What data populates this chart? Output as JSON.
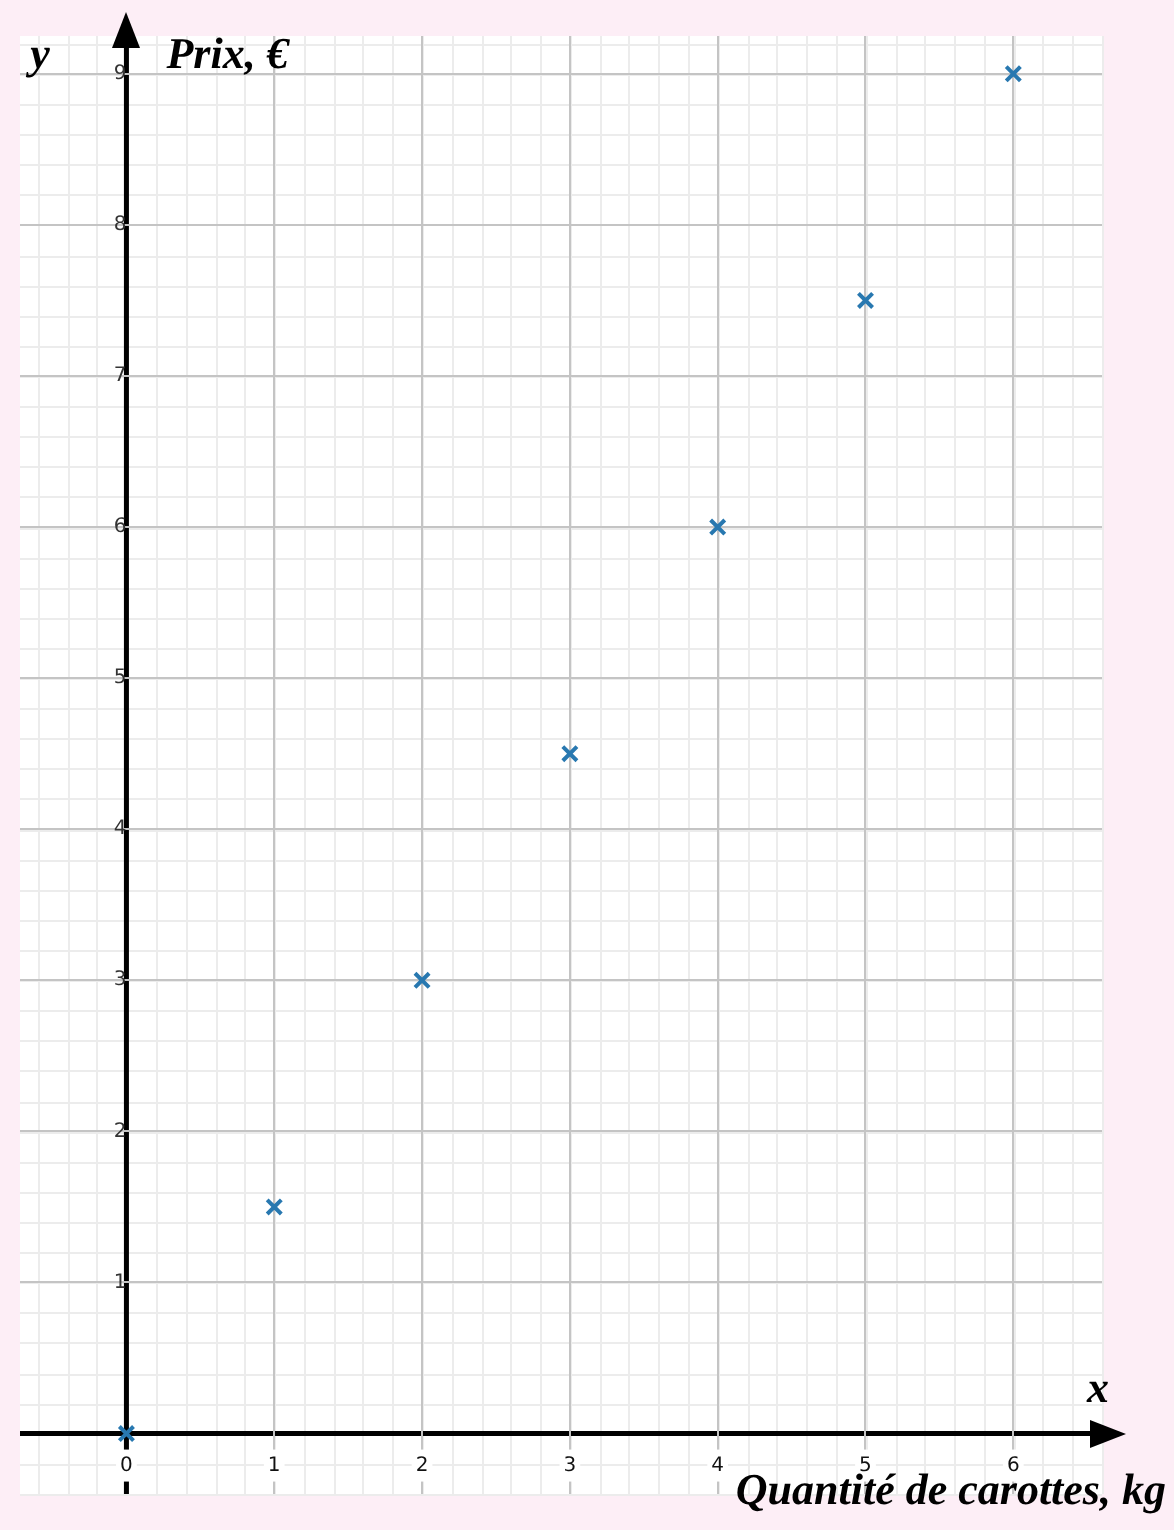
{
  "chart_data": {
    "type": "scatter",
    "xlabel": "Quantité de carottes, kg",
    "ylabel": "Prix, €",
    "annotations": [
      "x",
      "y"
    ],
    "x": [
      0,
      1,
      2,
      3,
      4,
      5,
      6
    ],
    "series": [
      {
        "color": "#2878b0",
        "values": [
          0,
          1.5,
          3,
          4.5,
          6,
          7.5,
          9
        ]
      }
    ],
    "xlim": [
      -0.72,
      6.6
    ],
    "ylim": [
      -0.4,
      9.25
    ],
    "xticks": [
      0,
      1,
      2,
      3,
      4,
      5,
      6
    ],
    "yticks": [
      {
        "value": 0,
        "label": null
      },
      1,
      2,
      3,
      4,
      5,
      6,
      7,
      8,
      9
    ],
    "grid": true,
    "marker": "cross",
    "legend": false
  }
}
